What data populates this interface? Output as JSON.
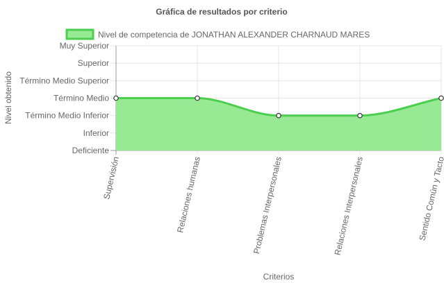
{
  "chart_data": {
    "type": "area",
    "title": "Gráfica de resultados por criterio",
    "xlabel": "Criterios",
    "ylabel": "Nivel obtenido",
    "y_levels": [
      "Deficiente",
      "Inferior",
      "Término Medio Inferior",
      "Término Medio",
      "Término Medio Superior",
      "Superior",
      "Muy Superior"
    ],
    "categories": [
      "Supervisión",
      "Relaciones humanas",
      "Problemas Interpersonales",
      "Relaciones Interpersonales",
      "Sentido Común y Tacto"
    ],
    "series": [
      {
        "name": "Nivel de competencia de JONATHAN ALEXANDER CHARNAUD MARES",
        "values": [
          3,
          3,
          2,
          2,
          3
        ],
        "value_labels": [
          "Término Medio",
          "Término Medio",
          "Término Medio Inferior",
          "Término Medio Inferior",
          "Término Medio"
        ]
      }
    ],
    "ylim": [
      0,
      6
    ],
    "grid": true,
    "legend_position": "top",
    "colors": {
      "fill": "#98e994",
      "stroke": "#4ccf4f",
      "point_fill": "#ffffff",
      "point_stroke": "#333333",
      "grid": "#e4e4e4",
      "axis": "#999999"
    }
  }
}
